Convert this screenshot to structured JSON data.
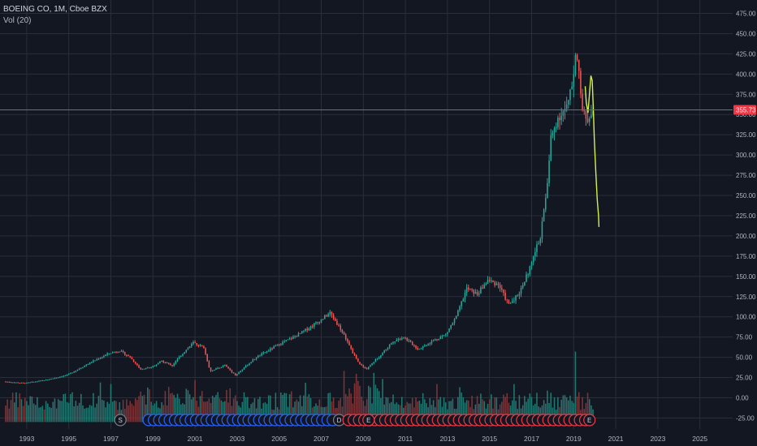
{
  "window": {
    "symbol_title": "BOEING CO, 1M, Cboe BZX",
    "volume_indicator": "Vol (20)"
  },
  "colors": {
    "background": "#131722",
    "grid": "#2a2e39",
    "up_candle": "#26a69a",
    "down_candle": "#ef5350",
    "up_volume": "#26877e",
    "down_volume": "#8e3a3b",
    "price_line": "#f23645",
    "drawing": "#d4f04c",
    "axis_text": "#b2b5be",
    "event_dividend": "#2962ff",
    "event_earnings": "#f23645",
    "event_split": "#434651"
  },
  "price_axis": {
    "ticks": [
      "475.00",
      "450.00",
      "425.00",
      "400.00",
      "375.00",
      "350.00",
      "325.00",
      "300.00",
      "275.00",
      "250.00",
      "225.00",
      "200.00",
      "175.00",
      "150.00",
      "125.00",
      "100.00",
      "75.00",
      "50.00",
      "25.00",
      "0.00",
      "-25.00"
    ],
    "current_price_label": "355.73"
  },
  "time_axis": {
    "ticks": [
      "1993",
      "1995",
      "1997",
      "1999",
      "2001",
      "2003",
      "2005",
      "2007",
      "2009",
      "2011",
      "2013",
      "2015",
      "2017",
      "2019",
      "2021",
      "2023",
      "2025"
    ]
  },
  "events": {
    "split_label": "S",
    "dividend_label": "D",
    "earnings_label": "E"
  },
  "chart_data": {
    "type": "candlestick",
    "interval": "1M",
    "symbol": "BOEING CO",
    "exchange": "Cboe BZX",
    "ylim": [
      -30,
      480
    ],
    "current_price": 355.73,
    "price_path": [
      [
        1992.0,
        20
      ],
      [
        1993.0,
        18
      ],
      [
        1994.0,
        22
      ],
      [
        1995.0,
        28
      ],
      [
        1996.0,
        42
      ],
      [
        1997.0,
        55
      ],
      [
        1997.5,
        58
      ],
      [
        1998.0,
        50
      ],
      [
        1998.5,
        35
      ],
      [
        1999.0,
        38
      ],
      [
        1999.5,
        45
      ],
      [
        2000.0,
        40
      ],
      [
        2000.5,
        55
      ],
      [
        2001.0,
        68
      ],
      [
        2001.5,
        62
      ],
      [
        2001.8,
        33
      ],
      [
        2002.5,
        40
      ],
      [
        2003.0,
        28
      ],
      [
        2004.0,
        50
      ],
      [
        2005.0,
        65
      ],
      [
        2006.0,
        78
      ],
      [
        2007.0,
        95
      ],
      [
        2007.5,
        105
      ],
      [
        2008.0,
        85
      ],
      [
        2008.8,
        45
      ],
      [
        2009.2,
        35
      ],
      [
        2009.8,
        50
      ],
      [
        2010.5,
        70
      ],
      [
        2011.0,
        75
      ],
      [
        2011.7,
        60
      ],
      [
        2012.5,
        72
      ],
      [
        2013.0,
        78
      ],
      [
        2013.5,
        100
      ],
      [
        2014.0,
        135
      ],
      [
        2014.5,
        128
      ],
      [
        2015.0,
        145
      ],
      [
        2015.5,
        140
      ],
      [
        2016.0,
        115
      ],
      [
        2016.5,
        130
      ],
      [
        2017.0,
        160
      ],
      [
        2017.5,
        200
      ],
      [
        2017.8,
        255
      ],
      [
        2018.0,
        320
      ],
      [
        2018.3,
        345
      ],
      [
        2018.8,
        360
      ],
      [
        2019.0,
        385
      ],
      [
        2019.2,
        440
      ],
      [
        2019.5,
        355
      ],
      [
        2019.7,
        340
      ],
      [
        2019.9,
        355.73
      ]
    ],
    "volume_note": "Vol (20)",
    "volume_scale": [
      0,
      95
    ],
    "volume_seed": 7
  }
}
